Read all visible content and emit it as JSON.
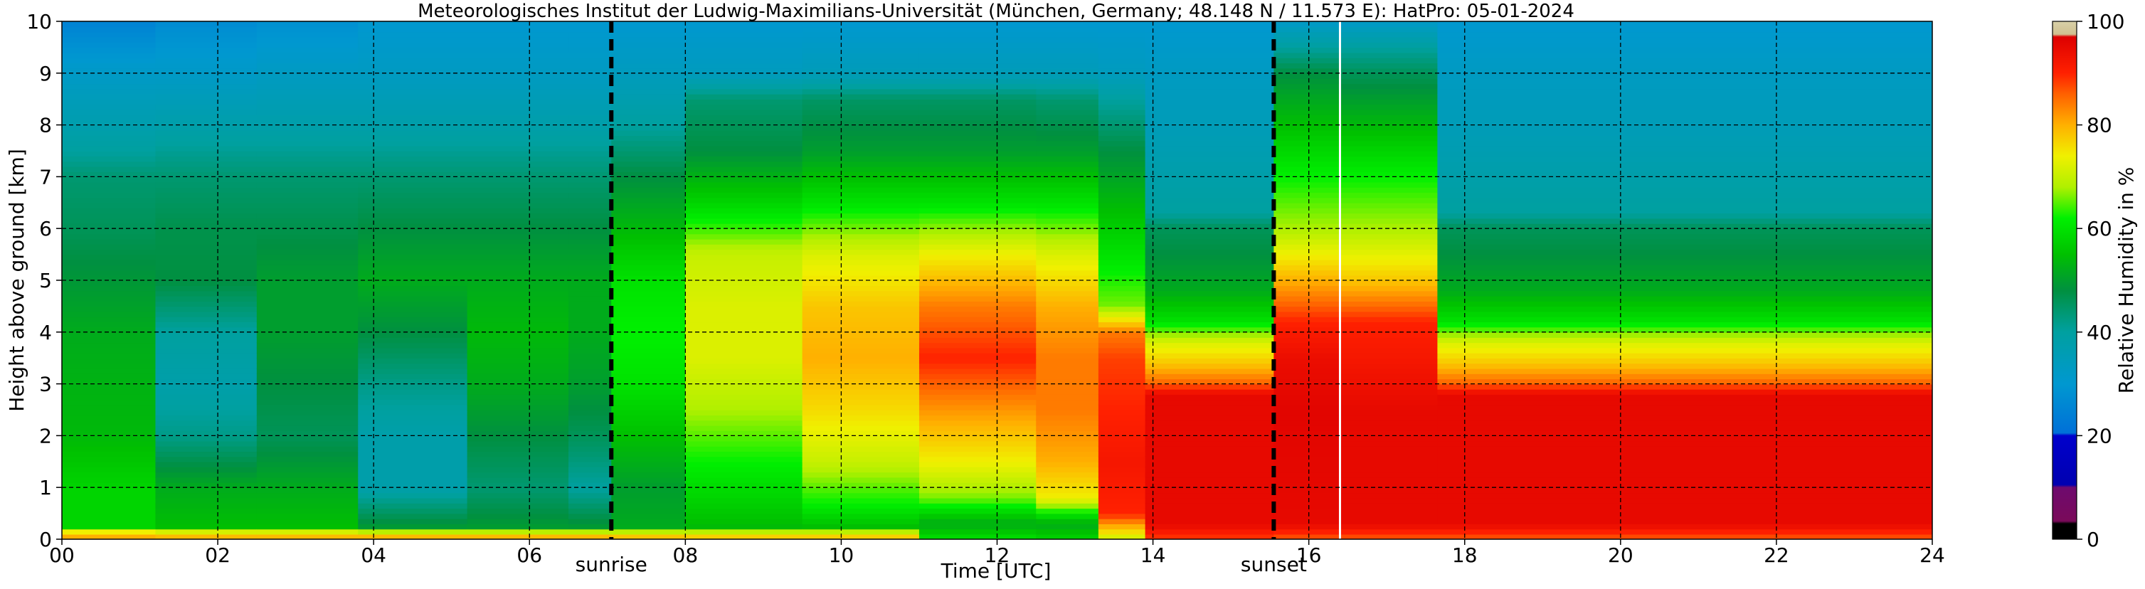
{
  "chart_data": {
    "type": "heatmap",
    "title": "Meteorologisches Institut der Ludwig-Maximilians-Universität (München, Germany; 48.148 N / 11.573 E):    HatPro: 05-01-2024",
    "xlabel": "Time [UTC]",
    "ylabel": "Height above ground [km]",
    "colorbar_label": "Relative Humidity in %",
    "xlim": [
      0,
      24
    ],
    "ylim": [
      0,
      10
    ],
    "x_ticks": [
      "00",
      "02",
      "04",
      "06",
      "08",
      "10",
      "12",
      "14",
      "16",
      "18",
      "20",
      "22",
      "24"
    ],
    "y_ticks": [
      "0",
      "1",
      "2",
      "3",
      "4",
      "5",
      "6",
      "7",
      "8",
      "9",
      "10"
    ],
    "colorbar_ticks": [
      "0",
      "20",
      "40",
      "60",
      "80",
      "100"
    ],
    "colorbar_range": [
      0,
      100
    ],
    "grid": true,
    "markers": [
      {
        "label": "sunrise",
        "x": 7.05,
        "style": "dashed"
      },
      {
        "label": "sunset",
        "x": 15.55,
        "style": "dashed"
      }
    ],
    "data_gap_x": 16.4,
    "time_segments": [
      {
        "x": [
          0.0,
          1.2
        ],
        "profile": [
          [
            0,
            70
          ],
          [
            0.1,
            90
          ],
          [
            0.2,
            58
          ],
          [
            1,
            58
          ],
          [
            2,
            54
          ],
          [
            4,
            52
          ],
          [
            6,
            46
          ],
          [
            7,
            44
          ],
          [
            7.5,
            40
          ],
          [
            9,
            32
          ],
          [
            10,
            25
          ]
        ]
      },
      {
        "x": [
          1.2,
          2.5
        ],
        "profile": [
          [
            0,
            70
          ],
          [
            0.1,
            88
          ],
          [
            0.2,
            55
          ],
          [
            1,
            52
          ],
          [
            2,
            42
          ],
          [
            3,
            38
          ],
          [
            4,
            40
          ],
          [
            5,
            48
          ],
          [
            6,
            47
          ],
          [
            7,
            44
          ],
          [
            8,
            38
          ],
          [
            9,
            32
          ],
          [
            10,
            27
          ]
        ]
      },
      {
        "x": [
          2.5,
          3.8
        ],
        "profile": [
          [
            0,
            70
          ],
          [
            0.1,
            88
          ],
          [
            0.2,
            55
          ],
          [
            1,
            52
          ],
          [
            2,
            46
          ],
          [
            3,
            48
          ],
          [
            4,
            50
          ],
          [
            5,
            50
          ],
          [
            6,
            47
          ],
          [
            7,
            44
          ],
          [
            8,
            38
          ],
          [
            9,
            33
          ],
          [
            10,
            28
          ]
        ]
      },
      {
        "x": [
          3.8,
          5.2
        ],
        "profile": [
          [
            0,
            70
          ],
          [
            0.1,
            88
          ],
          [
            0.2,
            50
          ],
          [
            1,
            38
          ],
          [
            2,
            38
          ],
          [
            3,
            42
          ],
          [
            4,
            48
          ],
          [
            5,
            52
          ],
          [
            6,
            48
          ],
          [
            7,
            44
          ],
          [
            8,
            38
          ],
          [
            9,
            33
          ],
          [
            10,
            30
          ]
        ]
      },
      {
        "x": [
          5.2,
          6.5
        ],
        "profile": [
          [
            0,
            70
          ],
          [
            0.1,
            88
          ],
          [
            0.2,
            50
          ],
          [
            1,
            44
          ],
          [
            2,
            48
          ],
          [
            3,
            52
          ],
          [
            4,
            54
          ],
          [
            5,
            52
          ],
          [
            6,
            48
          ],
          [
            7,
            44
          ],
          [
            8,
            38
          ],
          [
            9,
            33
          ],
          [
            10,
            30
          ]
        ]
      },
      {
        "x": [
          6.5,
          7.05
        ],
        "profile": [
          [
            0,
            70
          ],
          [
            0.1,
            88
          ],
          [
            0.2,
            50
          ],
          [
            1,
            40
          ],
          [
            2,
            46
          ],
          [
            3,
            50
          ],
          [
            4,
            52
          ],
          [
            5,
            52
          ],
          [
            6,
            48
          ],
          [
            7,
            44
          ],
          [
            8,
            38
          ],
          [
            9,
            33
          ],
          [
            10,
            30
          ]
        ]
      },
      {
        "x": [
          7.05,
          8.0
        ],
        "profile": [
          [
            0,
            70
          ],
          [
            0.1,
            86
          ],
          [
            0.2,
            52
          ],
          [
            1,
            50
          ],
          [
            2,
            55
          ],
          [
            3,
            60
          ],
          [
            4,
            62
          ],
          [
            5,
            60
          ],
          [
            6,
            54
          ],
          [
            7,
            48
          ],
          [
            8,
            40
          ],
          [
            9,
            34
          ],
          [
            10,
            30
          ]
        ]
      },
      {
        "x": [
          8.0,
          9.5
        ],
        "profile": [
          [
            0,
            70
          ],
          [
            0.1,
            84
          ],
          [
            0.2,
            54
          ],
          [
            0.8,
            58
          ],
          [
            1.5,
            62
          ],
          [
            2.5,
            68
          ],
          [
            3.5,
            72
          ],
          [
            4.5,
            72
          ],
          [
            5.5,
            70
          ],
          [
            6.5,
            58
          ],
          [
            7.5,
            48
          ],
          [
            8.5,
            44
          ],
          [
            9,
            34
          ],
          [
            10,
            30
          ]
        ]
      },
      {
        "x": [
          9.5,
          11.0
        ],
        "profile": [
          [
            0,
            70
          ],
          [
            0.1,
            84
          ],
          [
            0.2,
            54
          ],
          [
            0.7,
            62
          ],
          [
            1.5,
            70
          ],
          [
            2.5,
            76
          ],
          [
            3.5,
            80
          ],
          [
            4.5,
            78
          ],
          [
            5.5,
            72
          ],
          [
            6.5,
            60
          ],
          [
            7.5,
            50
          ],
          [
            8.5,
            45
          ],
          [
            9,
            35
          ],
          [
            10,
            30
          ]
        ]
      },
      {
        "x": [
          11.0,
          12.5
        ],
        "profile": [
          [
            0,
            60
          ],
          [
            0.3,
            52
          ],
          [
            0.8,
            66
          ],
          [
            1.5,
            74
          ],
          [
            2.5,
            82
          ],
          [
            3.5,
            90
          ],
          [
            4.5,
            84
          ],
          [
            5.5,
            74
          ],
          [
            6.5,
            60
          ],
          [
            7.5,
            50
          ],
          [
            8.5,
            45
          ],
          [
            9,
            35
          ],
          [
            10,
            30
          ]
        ]
      },
      {
        "x": [
          12.5,
          13.3
        ],
        "profile": [
          [
            0,
            58
          ],
          [
            0.3,
            52
          ],
          [
            0.8,
            74
          ],
          [
            1.5,
            80
          ],
          [
            2.5,
            84
          ],
          [
            3.5,
            84
          ],
          [
            4.5,
            80
          ],
          [
            5.5,
            72
          ],
          [
            6.5,
            60
          ],
          [
            7.5,
            50
          ],
          [
            8.5,
            44
          ],
          [
            9,
            35
          ],
          [
            10,
            30
          ]
        ]
      },
      {
        "x": [
          13.3,
          13.9
        ],
        "profile": [
          [
            0,
            70
          ],
          [
            0.5,
            90
          ],
          [
            1.5,
            92
          ],
          [
            2.5,
            90
          ],
          [
            3.5,
            88
          ],
          [
            4,
            84
          ],
          [
            4.5,
            66
          ],
          [
            5.5,
            60
          ],
          [
            6.5,
            54
          ],
          [
            7.5,
            48
          ],
          [
            8.5,
            40
          ],
          [
            9,
            34
          ],
          [
            10,
            30
          ]
        ]
      },
      {
        "x": [
          13.9,
          15.55
        ],
        "profile": [
          [
            0,
            88
          ],
          [
            0.3,
            95
          ],
          [
            2.8,
            95
          ],
          [
            3,
            86
          ],
          [
            3.4,
            78
          ],
          [
            3.8,
            72
          ],
          [
            4.2,
            60
          ],
          [
            4.8,
            52
          ],
          [
            5.5,
            48
          ],
          [
            6,
            46
          ],
          [
            6.3,
            40
          ],
          [
            7,
            38
          ],
          [
            8,
            35
          ],
          [
            9,
            33
          ],
          [
            10,
            30
          ]
        ]
      },
      {
        "x": [
          15.55,
          16.4
        ],
        "profile": [
          [
            0,
            86
          ],
          [
            0.3,
            95
          ],
          [
            2.5,
            96
          ],
          [
            3.5,
            94
          ],
          [
            4.2,
            90
          ],
          [
            5,
            80
          ],
          [
            6,
            68
          ],
          [
            7,
            62
          ],
          [
            8,
            55
          ],
          [
            9,
            48
          ],
          [
            9.5,
            40
          ],
          [
            10,
            32
          ]
        ]
      },
      {
        "x": [
          16.4,
          17.65
        ],
        "profile": [
          [
            0,
            86
          ],
          [
            0.3,
            95
          ],
          [
            2.5,
            95
          ],
          [
            3.5,
            92
          ],
          [
            4.2,
            90
          ],
          [
            5,
            78
          ],
          [
            6,
            68
          ],
          [
            7,
            62
          ],
          [
            8,
            54
          ],
          [
            9,
            46
          ],
          [
            9.5,
            40
          ],
          [
            10,
            32
          ]
        ]
      },
      {
        "x": [
          17.65,
          24.0
        ],
        "profile": [
          [
            0,
            86
          ],
          [
            0.3,
            95
          ],
          [
            2.8,
            95
          ],
          [
            3,
            86
          ],
          [
            3.4,
            78
          ],
          [
            3.8,
            72
          ],
          [
            4.2,
            60
          ],
          [
            4.8,
            52
          ],
          [
            5.5,
            48
          ],
          [
            6,
            46
          ],
          [
            6.3,
            40
          ],
          [
            7,
            38
          ],
          [
            8,
            35
          ],
          [
            9,
            33
          ],
          [
            10,
            30
          ]
        ]
      }
    ]
  }
}
